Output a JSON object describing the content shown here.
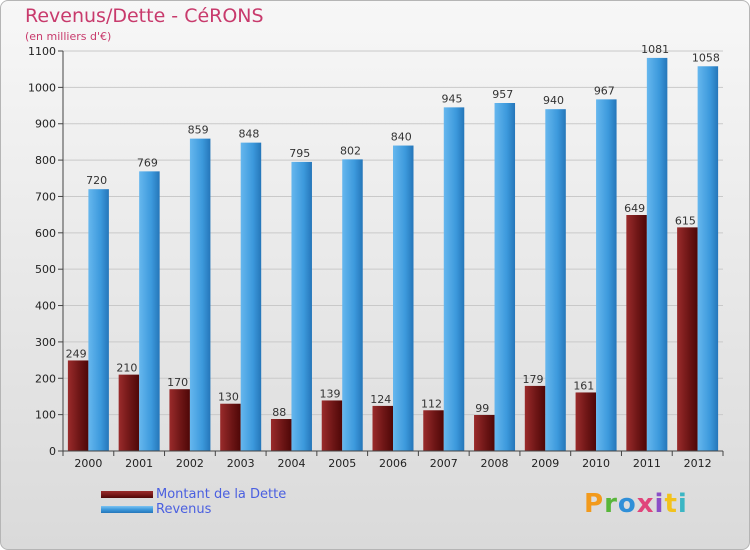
{
  "title": "Revenus/Dette - CéRONS",
  "subtitle": "(en milliers d'€)",
  "colors": {
    "dette": "#7a1a1a",
    "revenus": "#3c99dc",
    "title": "#c83a6c",
    "legend_text": "#4a5fe0"
  },
  "legend": {
    "dette_label": "Montant de la Dette",
    "revenus_label": "Revenus"
  },
  "logo": {
    "text": "Proxiti"
  },
  "chart_data": {
    "type": "bar",
    "title": "Revenus/Dette - CéRONS",
    "ylabel": "(en milliers d'€)",
    "xlabel": "",
    "ylim": [
      0,
      1100
    ],
    "yticks": [
      0,
      100,
      200,
      300,
      400,
      500,
      600,
      700,
      800,
      900,
      1000,
      1100
    ],
    "grid": true,
    "categories": [
      "2000",
      "2001",
      "2002",
      "2003",
      "2004",
      "2005",
      "2006",
      "2007",
      "2008",
      "2009",
      "2010",
      "2011",
      "2012"
    ],
    "series": [
      {
        "name": "Montant de la Dette",
        "values": [
          249,
          210,
          170,
          130,
          88,
          139,
          124,
          112,
          99,
          179,
          161,
          649,
          615
        ]
      },
      {
        "name": "Revenus",
        "values": [
          720,
          769,
          859,
          848,
          795,
          802,
          840,
          945,
          957,
          940,
          967,
          1081,
          1058
        ]
      }
    ]
  }
}
